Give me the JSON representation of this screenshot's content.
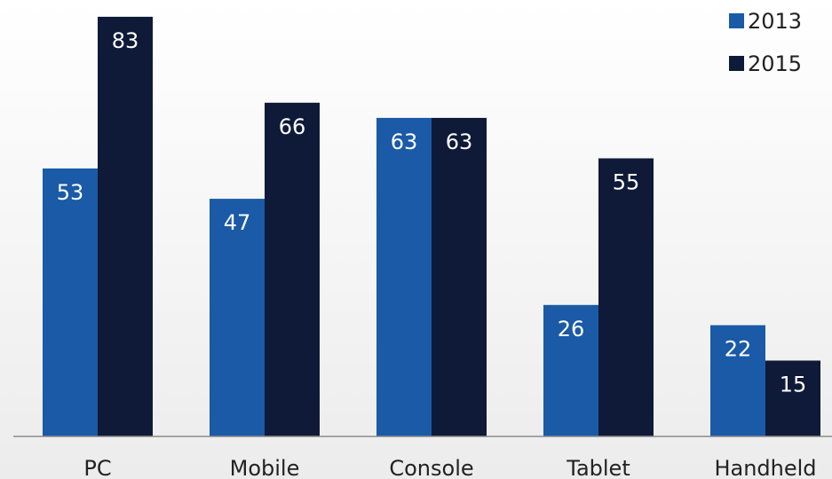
{
  "chart_data": {
    "type": "bar",
    "categories": [
      "PC",
      "Mobile",
      "Console",
      "Tablet",
      "Handheld"
    ],
    "series": [
      {
        "name": "2013",
        "values": [
          53,
          47,
          63,
          26,
          22
        ],
        "color": "#1a5aa6"
      },
      {
        "name": "2015",
        "values": [
          83,
          66,
          63,
          55,
          15
        ],
        "color": "#0f1a38"
      }
    ],
    "ylim": [
      0,
      100
    ],
    "grid": false,
    "legend_position": "top-right",
    "data_labels": true,
    "label_color": "#ffffff",
    "axis_color": "#8a8a8a",
    "text_color": "#222222"
  }
}
